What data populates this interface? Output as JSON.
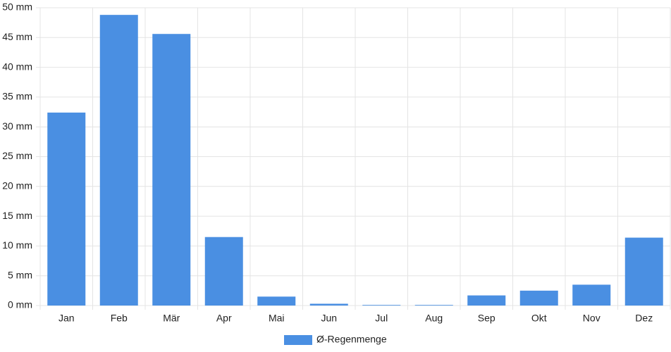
{
  "chart_data": {
    "type": "bar",
    "categories": [
      "Jan",
      "Feb",
      "Mär",
      "Apr",
      "Mai",
      "Jun",
      "Jul",
      "Aug",
      "Sep",
      "Okt",
      "Nov",
      "Dez"
    ],
    "series": [
      {
        "name": "Ø-Regenmenge",
        "color": "#4a8fe2",
        "values": [
          32.4,
          48.8,
          45.6,
          11.5,
          1.5,
          0.3,
          0.1,
          0.1,
          1.7,
          2.5,
          3.5,
          11.4
        ]
      }
    ],
    "ylim": [
      0,
      50
    ],
    "yticks": [
      {
        "value": 0,
        "label": "0 mm"
      },
      {
        "value": 5,
        "label": "5 mm"
      },
      {
        "value": 10,
        "label": "10 mm"
      },
      {
        "value": 15,
        "label": "15 mm"
      },
      {
        "value": 20,
        "label": "20 mm"
      },
      {
        "value": 25,
        "label": "25 mm"
      },
      {
        "value": 30,
        "label": "30 mm"
      },
      {
        "value": 35,
        "label": "35 mm"
      },
      {
        "value": 40,
        "label": "40 mm"
      },
      {
        "value": 45,
        "label": "45 mm"
      },
      {
        "value": 50,
        "label": "50 mm"
      }
    ],
    "grid": true,
    "legend": "bottom"
  }
}
